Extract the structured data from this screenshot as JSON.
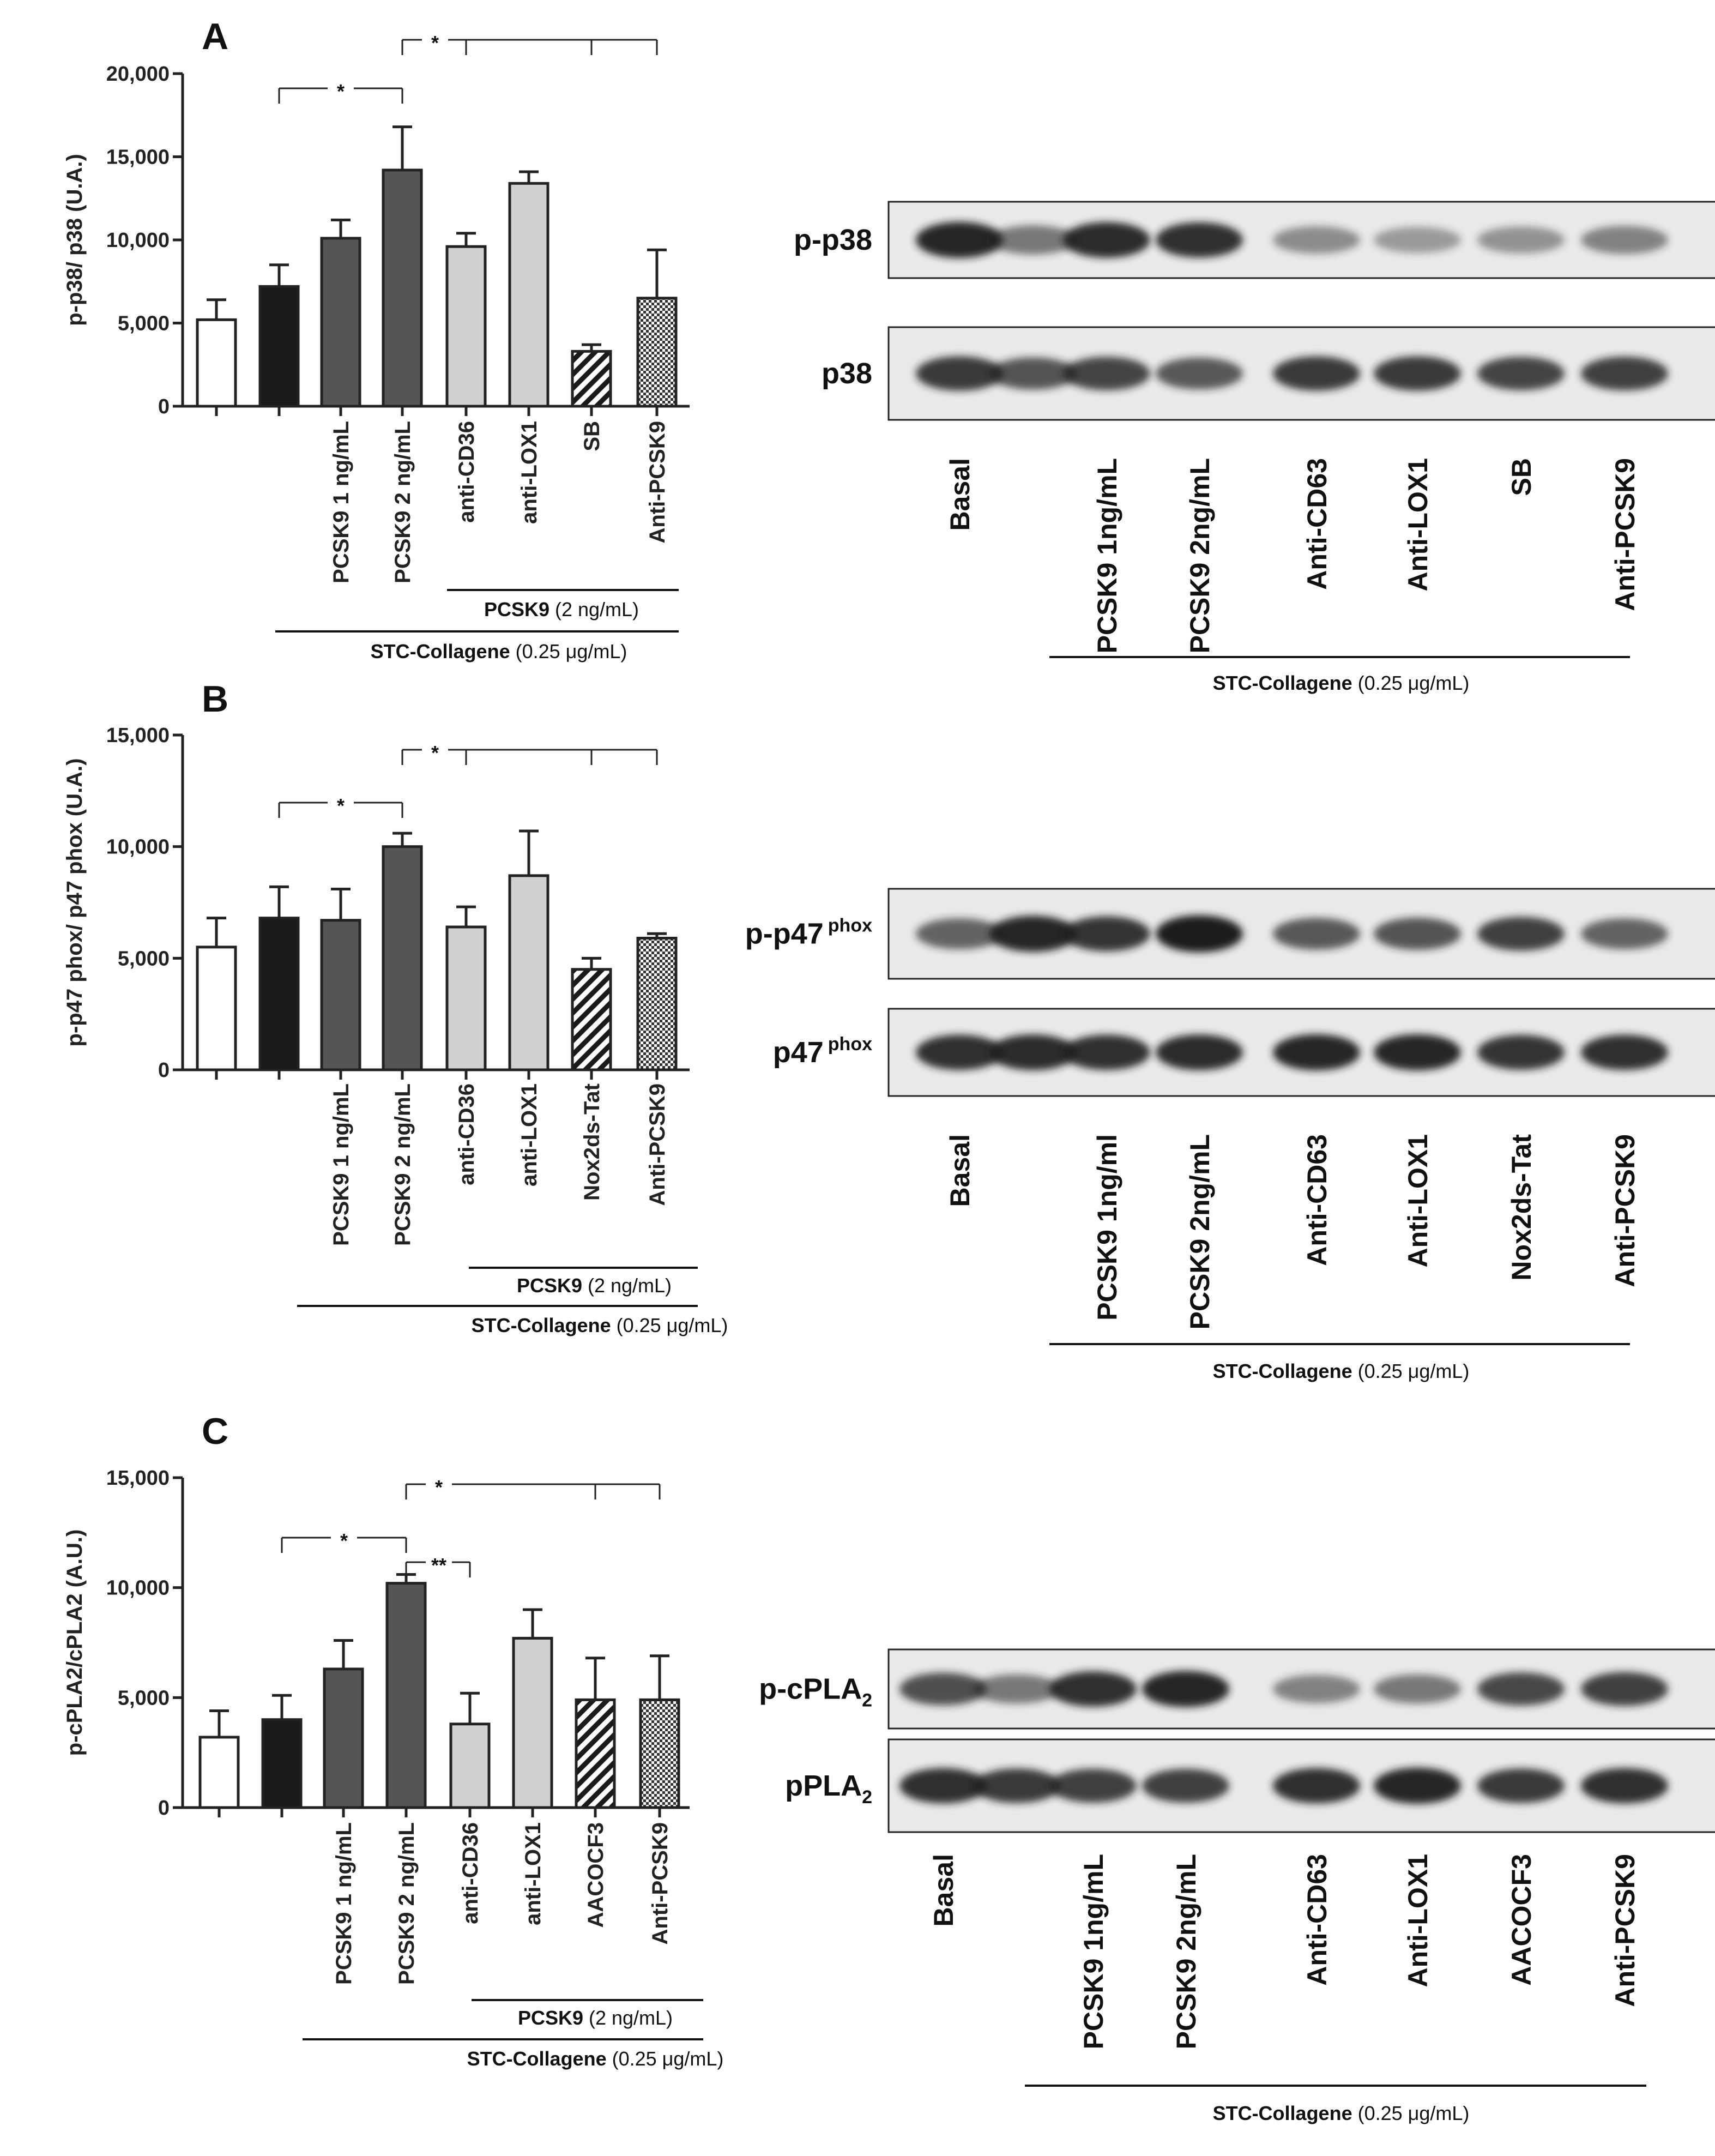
{
  "colors": {
    "white_bar": "#ffffff",
    "black_bar": "#1a1a1a",
    "dark_gray_bar": "#555555",
    "light_gray_bar": "#d0d0d0",
    "outline": "#222222",
    "blot_background": "#e9e9e9",
    "band": "#1e1e1e"
  },
  "chart_data": [
    {
      "panel": "A",
      "type": "bar",
      "ylabel": "p-p38/ p38 (U.A.)",
      "ylim": [
        0,
        20000
      ],
      "yticks": [
        "0",
        "5,000",
        "10,000",
        "15,000",
        "20,000"
      ],
      "yticks_values": [
        0,
        5000,
        10000,
        15000,
        20000
      ],
      "categories": [
        "",
        "",
        "PCSK9 1 ng/mL",
        "PCSK9 2 ng/mL",
        "anti-CD36",
        "anti-LOX1",
        "SB",
        "Anti-PCSK9"
      ],
      "values": [
        5200,
        7200,
        10100,
        14200,
        9600,
        13400,
        3300,
        6500
      ],
      "errors": [
        1200,
        1300,
        1100,
        2600,
        800,
        700,
        400,
        2900
      ],
      "fills": [
        "white",
        "black",
        "dark",
        "dark",
        "light",
        "light",
        "hatch",
        "check"
      ],
      "significance": [
        {
          "from": 1,
          "to": 3,
          "label": "*"
        },
        {
          "from": 3,
          "to": [
            4,
            6,
            7
          ],
          "label": "*"
        }
      ],
      "group_lines": [
        {
          "bold": "PCSK9",
          "rest": " (2 ng/mL)"
        },
        {
          "bold": "STC-Collagene",
          "rest": " (0.25 μg/mL)"
        }
      ]
    },
    {
      "panel": "B",
      "type": "bar",
      "ylabel": "p-p47 phox/ p47 phox (U.A.)",
      "ylim": [
        0,
        15000
      ],
      "yticks": [
        "0",
        "5,000",
        "10,000",
        "15,000"
      ],
      "yticks_values": [
        0,
        5000,
        10000,
        15000
      ],
      "categories": [
        "",
        "",
        "PCSK9 1 ng/mL",
        "PCSK9 2 ng/mL",
        "anti-CD36",
        "anti-LOX1",
        "Nox2ds-Tat",
        "Anti-PCSK9"
      ],
      "values": [
        5500,
        6800,
        6700,
        10000,
        6400,
        8700,
        4500,
        5900
      ],
      "errors": [
        1300,
        1400,
        1400,
        600,
        900,
        2000,
        500,
        200
      ],
      "fills": [
        "white",
        "black",
        "dark",
        "dark",
        "light",
        "light",
        "hatch",
        "check"
      ],
      "significance": [
        {
          "from": 1,
          "to": 3,
          "label": "*"
        },
        {
          "from": 3,
          "to": [
            4,
            6,
            7
          ],
          "label": "*"
        }
      ],
      "group_lines": [
        {
          "bold": "PCSK9",
          "rest": " (2 ng/mL)"
        },
        {
          "bold": "STC-Collagene",
          "rest": " (0.25 μg/mL)"
        }
      ]
    },
    {
      "panel": "C",
      "type": "bar",
      "ylabel": "p-cPLA2/cPLA2 (A.U.)",
      "ylim": [
        0,
        15000
      ],
      "yticks": [
        "0",
        "5,000",
        "10,000",
        "15,000"
      ],
      "yticks_values": [
        0,
        5000,
        10000,
        15000
      ],
      "categories": [
        "",
        "",
        "PCSK9 1 ng/mL",
        "PCSK9 2 ng/mL",
        "anti-CD36",
        "anti-LOX1",
        "AACOCF3",
        "Anti-PCSK9"
      ],
      "values": [
        3200,
        4000,
        6300,
        10200,
        3800,
        7700,
        4900,
        4900
      ],
      "errors": [
        1200,
        1100,
        1300,
        400,
        1400,
        1300,
        1900,
        2000
      ],
      "fills": [
        "white",
        "black",
        "dark",
        "dark",
        "light",
        "light",
        "hatch",
        "check"
      ],
      "significance": [
        {
          "from": 1,
          "to": 3,
          "label": "*"
        },
        {
          "from": 3,
          "to": 4,
          "label": "**"
        },
        {
          "from": 3,
          "to": [
            6,
            7
          ],
          "label": "*"
        }
      ],
      "group_lines": [
        {
          "bold": "PCSK9",
          "rest": " (2 ng/mL)"
        },
        {
          "bold": "STC-Collagene",
          "rest": " (0.25 μg/mL)"
        }
      ]
    }
  ],
  "blots": [
    {
      "panel": "A",
      "rows": [
        {
          "label": "p-p38",
          "sup": "",
          "intensity": [
            0.95,
            0.55,
            0.92,
            0.9,
            0.45,
            0.38,
            0.42,
            0.5
          ]
        },
        {
          "label": "p38",
          "sup": "",
          "intensity": [
            0.85,
            0.72,
            0.8,
            0.7,
            0.85,
            0.85,
            0.8,
            0.82
          ]
        }
      ],
      "lanes": [
        "Basal",
        "",
        "PCSK9 1ng/mL",
        "PCSK9 2ng/mL",
        "Anti-CD63",
        "Anti-LOX1",
        "SB",
        "Anti-PCSK9"
      ],
      "group": {
        "bold": "STC-Collagene",
        "rest": " (0.25 μg/mL)"
      }
    },
    {
      "panel": "B",
      "rows": [
        {
          "label": "p-p47",
          "sup": "phox",
          "intensity": [
            0.65,
            0.95,
            0.88,
            1.0,
            0.7,
            0.72,
            0.82,
            0.65
          ]
        },
        {
          "label": "p47",
          "sup": "phox",
          "intensity": [
            0.9,
            0.92,
            0.9,
            0.92,
            0.95,
            0.95,
            0.88,
            0.9
          ]
        }
      ],
      "lanes": [
        "Basal",
        "",
        "PCSK9 1ng/ml",
        "PCSK9 2ng/mL",
        "Anti-CD63",
        "Anti-LOX1",
        "Nox2ds-Tat",
        "Anti-PCSK9"
      ],
      "group": {
        "bold": "STC-Collagene",
        "rest": " (0.25 μg/mL)"
      }
    },
    {
      "panel": "C",
      "rows": [
        {
          "label": "p-cPLA",
          "sub": "2",
          "intensity": [
            0.75,
            0.55,
            0.9,
            0.95,
            0.5,
            0.55,
            0.78,
            0.82
          ]
        },
        {
          "label": "pPLA",
          "sub": "2",
          "intensity": [
            0.9,
            0.85,
            0.82,
            0.82,
            0.9,
            0.95,
            0.85,
            0.9
          ]
        }
      ],
      "lanes": [
        "Basal",
        "",
        "PCSK9 1ng/mL",
        "PCSK9 2ng/mL",
        "Anti-CD63",
        "Anti-LOX1",
        "AACOCF3",
        "Anti-PCSK9"
      ],
      "group": {
        "bold": "STC-Collagene",
        "rest": " (0.25 μg/mL)"
      }
    }
  ]
}
